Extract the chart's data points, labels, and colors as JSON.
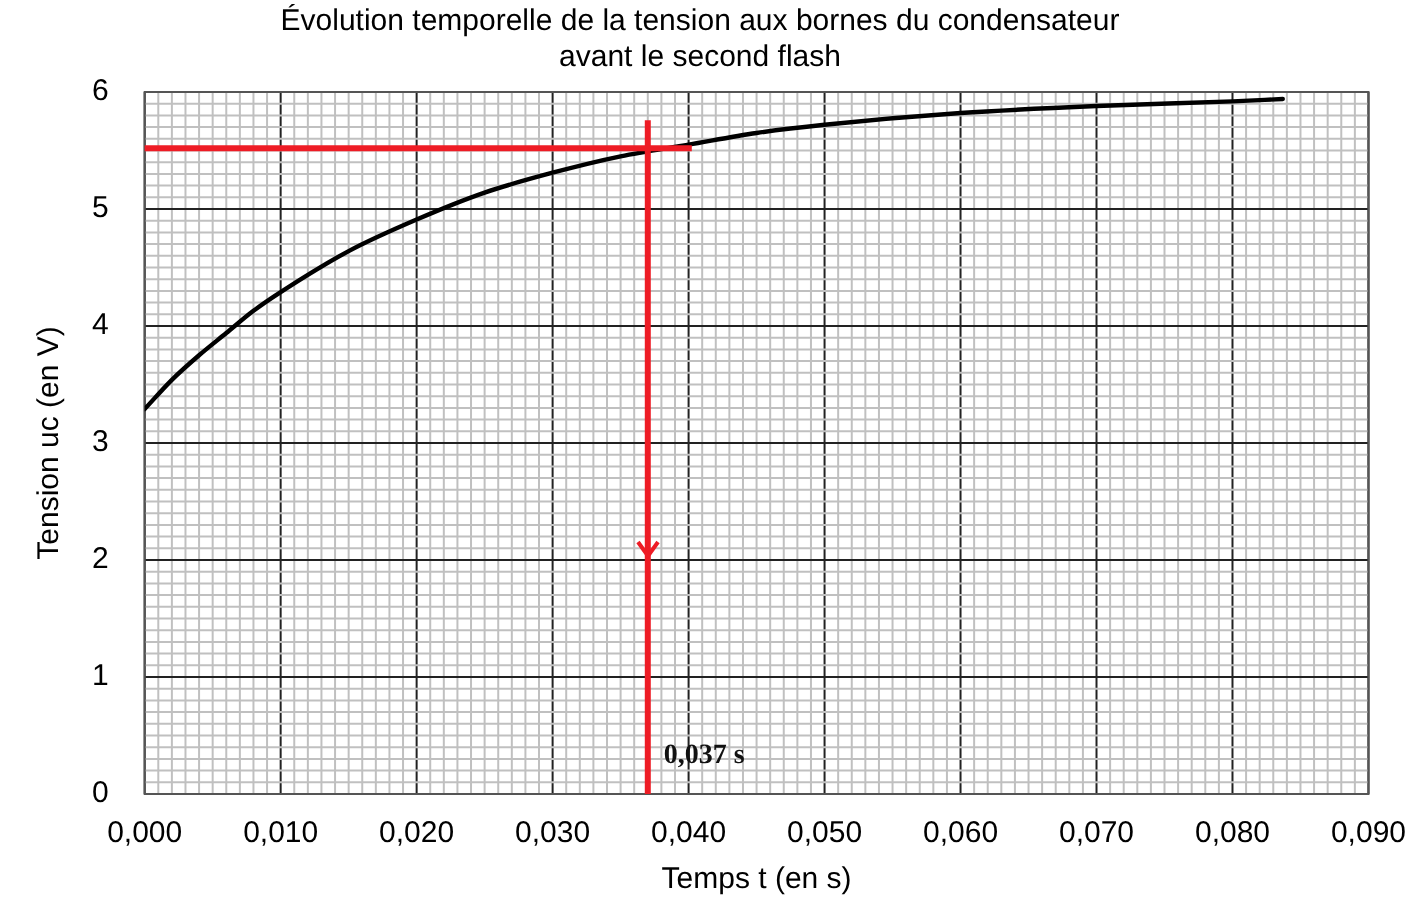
{
  "chart_data": {
    "type": "line",
    "title": "Évolution temporelle de la tension aux bornes du condensateur\navant le second flash",
    "xlabel": "Temps t (en s)",
    "ylabel": "Tension uc (en V)",
    "x": [
      0,
      0.002,
      0.004,
      0.006,
      0.008,
      0.01,
      0.015,
      0.02,
      0.025,
      0.03,
      0.035,
      0.04,
      0.045,
      0.05,
      0.06,
      0.07,
      0.08,
      0.0837
    ],
    "series": [
      {
        "color": "#000000",
        "values": [
          3.29,
          3.54,
          3.75,
          3.94,
          4.13,
          4.29,
          4.64,
          4.91,
          5.14,
          5.31,
          5.45,
          5.55,
          5.65,
          5.72,
          5.82,
          5.88,
          5.92,
          5.94
        ]
      }
    ],
    "xlim": [
      0,
      0.09
    ],
    "xticks": [
      {
        "value": 0,
        "label": "0,000"
      },
      {
        "value": 0.01,
        "label": "0,010"
      },
      {
        "value": 0.02,
        "label": "0,020"
      },
      {
        "value": 0.03,
        "label": "0,030"
      },
      {
        "value": 0.04,
        "label": "0,040"
      },
      {
        "value": 0.05,
        "label": "0,050"
      },
      {
        "value": 0.06,
        "label": "0,060"
      },
      {
        "value": 0.07,
        "label": "0,070"
      },
      {
        "value": 0.08,
        "label": "0,080"
      },
      {
        "value": 0.09,
        "label": "0,090"
      }
    ],
    "ylim": [
      0,
      6
    ],
    "yticks": [
      0,
      1,
      2,
      3,
      4,
      5,
      6
    ],
    "ref_lines": [
      {
        "axis": "x",
        "value": 0.037,
        "label": "0,037 s",
        "color": "#ee1c25"
      },
      {
        "axis": "y",
        "value": 5.52,
        "color": "#ee1c25"
      }
    ],
    "grid": true,
    "legend": false,
    "marker": "none",
    "line_style": "solid"
  }
}
